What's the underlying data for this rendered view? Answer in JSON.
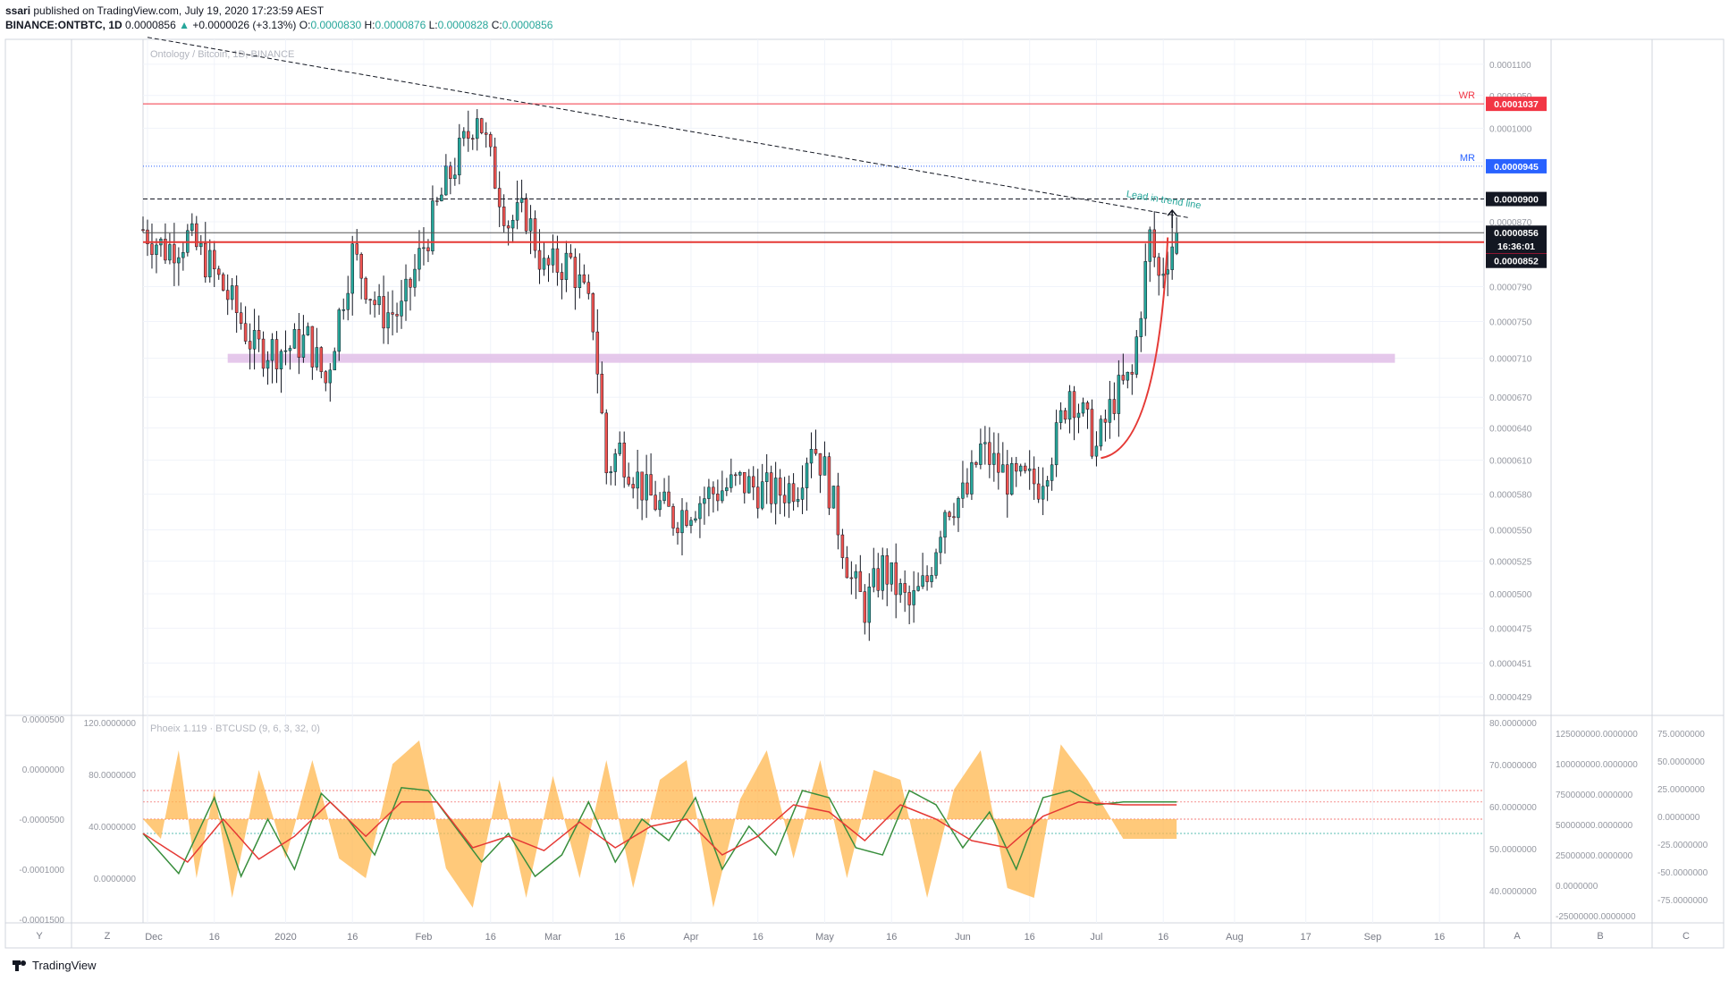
{
  "header": {
    "author": "ssari",
    "published_line": "published on TradingView.com, July 19, 2020 17:23:59 AEST",
    "symbol": "BINANCE:ONTBTC, 1D",
    "price": "0.0000856",
    "arrow": "▲",
    "change": "+0.0000026 (+3.13%)",
    "o_label": "O:",
    "o_value": "0.0000830",
    "h_label": "H:",
    "h_value": "0.0000876",
    "l_label": "L:",
    "l_value": "0.0000828",
    "c_label": "C:",
    "c_value": "0.0000856"
  },
  "footer": {
    "brand": "TradingView",
    "logo_icon": "tradingview-logo-icon"
  },
  "colors": {
    "up": "#26a69a",
    "down": "#ef5350",
    "wr_line": "#f23645",
    "mr_line": "#2962ff",
    "support_band": "#e1bee7",
    "curve": "#e53935",
    "fill": "#ffb74d",
    "fast_line": "#388e3c",
    "slow_line": "#e53935"
  },
  "chart_data": {
    "type": "candlestick",
    "title": "Ontology / Bitcoin, 1D, BINANCE",
    "y_scale": "log",
    "ylim": [
      4.2e-05,
      0.000114
    ],
    "price_ticks": [
      "0.0001100",
      "0.0001050",
      "0.0001000",
      "0.0000950",
      "0.0000900",
      "0.0000870",
      "0.0000790",
      "0.0000750",
      "0.0000710",
      "0.0000670",
      "0.0000640",
      "0.0000610",
      "0.0000580",
      "0.0000550",
      "0.0000525",
      "0.0000500",
      "0.0000475",
      "0.0000451",
      "0.0000429"
    ],
    "x_ticks": [
      "Dec",
      "16",
      "2020",
      "16",
      "Feb",
      "16",
      "Mar",
      "16",
      "Apr",
      "16",
      "May",
      "16",
      "Jun",
      "16",
      "Jul",
      "16",
      "Aug",
      "17",
      "Sep",
      "16"
    ],
    "x_tick_dates": [
      "2019-12-01",
      "2019-12-16",
      "2020-01-01",
      "2020-01-16",
      "2020-02-01",
      "2020-02-16",
      "2020-03-01",
      "2020-03-16",
      "2020-04-01",
      "2020-04-16",
      "2020-05-01",
      "2020-05-16",
      "2020-06-01",
      "2020-06-16",
      "2020-07-01",
      "2020-07-16",
      "2020-08-01",
      "2020-08-17",
      "2020-09-01",
      "2020-09-16"
    ],
    "date_range": [
      "2019-11-30",
      "2020-07-19"
    ],
    "anchors": [
      [
        "2019-11-30",
        8.6e-05
      ],
      [
        "2019-12-05",
        8.35e-05
      ],
      [
        "2019-12-10",
        8.5e-05
      ],
      [
        "2019-12-15",
        8.15e-05
      ],
      [
        "2019-12-20",
        7.7e-05
      ],
      [
        "2019-12-25",
        7.2e-05
      ],
      [
        "2020-01-01",
        7.2e-05
      ],
      [
        "2020-01-06",
        7.3e-05
      ],
      [
        "2020-01-10",
        6.85e-05
      ],
      [
        "2020-01-16",
        8.3e-05
      ],
      [
        "2020-01-22",
        7.6e-05
      ],
      [
        "2020-01-27",
        7.6e-05
      ],
      [
        "2020-02-01",
        8.4e-05
      ],
      [
        "2020-02-06",
        9.2e-05
      ],
      [
        "2020-02-11",
        9.9e-05
      ],
      [
        "2020-02-13",
        0.000103
      ],
      [
        "2020-02-16",
        9.5e-05
      ],
      [
        "2020-02-20",
        8.7e-05
      ],
      [
        "2020-02-24",
        8.8e-05
      ],
      [
        "2020-02-28",
        8.1e-05
      ],
      [
        "2020-03-05",
        8.2e-05
      ],
      [
        "2020-03-10",
        7.5e-05
      ],
      [
        "2020-03-13",
        6e-05
      ],
      [
        "2020-03-16",
        6.2e-05
      ],
      [
        "2020-03-22",
        5.8e-05
      ],
      [
        "2020-03-28",
        5.6e-05
      ],
      [
        "2020-04-05",
        5.8e-05
      ],
      [
        "2020-04-12",
        5.9e-05
      ],
      [
        "2020-04-20",
        5.8e-05
      ],
      [
        "2020-04-25",
        5.9e-05
      ],
      [
        "2020-04-28",
        6.3e-05
      ],
      [
        "2020-05-01",
        6e-05
      ],
      [
        "2020-05-07",
        5.1e-05
      ],
      [
        "2020-05-10",
        4.9e-05
      ],
      [
        "2020-05-14",
        5.2e-05
      ],
      [
        "2020-05-20",
        4.9e-05
      ],
      [
        "2020-05-24",
        5.1e-05
      ],
      [
        "2020-05-28",
        5.7e-05
      ],
      [
        "2020-06-02",
        5.8e-05
      ],
      [
        "2020-06-05",
        6.2e-05
      ],
      [
        "2020-06-12",
        5.9e-05
      ],
      [
        "2020-06-18",
        5.9e-05
      ],
      [
        "2020-06-22",
        6.3e-05
      ],
      [
        "2020-06-25",
        6.8e-05
      ],
      [
        "2020-06-28",
        6.5e-05
      ],
      [
        "2020-07-01",
        6.2e-05
      ],
      [
        "2020-07-05",
        6.7e-05
      ],
      [
        "2020-07-09",
        6.9e-05
      ],
      [
        "2020-07-11",
        7.7e-05
      ],
      [
        "2020-07-13",
        8.5e-05
      ],
      [
        "2020-07-15",
        8e-05
      ],
      [
        "2020-07-17",
        8.3e-05
      ],
      [
        "2020-07-19",
        8.56e-05
      ]
    ],
    "levels": [
      {
        "name": "WR",
        "label": "WR",
        "value": 0.0001037,
        "tag": "0.0001037",
        "style": "solid",
        "color": "#f23645"
      },
      {
        "name": "MR",
        "label": "MR",
        "value": 9.45e-05,
        "tag": "0.0000945",
        "style": "dotted",
        "color": "#2962ff"
      },
      {
        "name": "resistance-900",
        "label": "",
        "value": 9e-05,
        "tag": "0.0000900",
        "style": "dashed",
        "color": "#131722"
      },
      {
        "name": "last-price",
        "label": "",
        "value": 8.56e-05,
        "tag": "0.0000856",
        "style": "solid",
        "color": "#555555"
      },
      {
        "name": "red-level",
        "label": "",
        "value": 8.44e-05,
        "tag": "0.0000844",
        "style": "solid-thick",
        "color": "#e53935"
      }
    ],
    "extra_tags": [
      {
        "name": "countdown",
        "text": "16:36:01",
        "value": 8.56e-05,
        "offset": 15
      },
      {
        "name": "price-852",
        "text": "0.0000852",
        "value": 8.52e-05,
        "offset": 28
      }
    ],
    "support_zone": {
      "value": 7.1e-05,
      "from": "2019-12-19",
      "to": "2020-09-06"
    },
    "trend_line": {
      "from": [
        "2019-12-01",
        0.0001145
      ],
      "to": [
        "2020-07-22",
        8.75e-05
      ]
    },
    "annotation": "Lead in trend line",
    "indicator": {
      "title": "Phoeix 1.119 · BTCUSD (9, 6, 3, 32, 0)",
      "left_ticks": [
        "120.0000000",
        "80.0000000",
        "40.0000000",
        "0.0000000"
      ],
      "left_ticks2": [
        "0.0000500",
        "0.0000000",
        "-0.0000500",
        "-0.0001000",
        "-0.0001500"
      ],
      "right_ticks1": [
        "80.0000000",
        "70.0000000",
        "60.0000000",
        "50.0000000",
        "40.0000000"
      ],
      "right_ticks2": [
        "125000000.0000000",
        "100000000.0000000",
        "75000000.0000000",
        "50000000.0000000",
        "25000000.0000000",
        "0.0000000",
        "-25000000.0000000"
      ],
      "right_ticks3": [
        "75.0000000",
        "50.0000000",
        "25.0000000",
        "0.0000000",
        "-25.0000000",
        "-50.0000000",
        "-75.0000000"
      ],
      "fast_anchors": [
        [
          0,
          50
        ],
        [
          8,
          22
        ],
        [
          16,
          75
        ],
        [
          22,
          20
        ],
        [
          28,
          60
        ],
        [
          34,
          25
        ],
        [
          40,
          78
        ],
        [
          46,
          60
        ],
        [
          52,
          35
        ],
        [
          58,
          82
        ],
        [
          64,
          80
        ],
        [
          70,
          55
        ],
        [
          76,
          30
        ],
        [
          82,
          50
        ],
        [
          88,
          20
        ],
        [
          94,
          35
        ],
        [
          100,
          72
        ],
        [
          106,
          30
        ],
        [
          112,
          60
        ],
        [
          118,
          45
        ],
        [
          124,
          75
        ],
        [
          130,
          25
        ],
        [
          136,
          55
        ],
        [
          142,
          35
        ],
        [
          148,
          80
        ],
        [
          154,
          75
        ],
        [
          160,
          40
        ],
        [
          166,
          35
        ],
        [
          172,
          80
        ],
        [
          178,
          70
        ],
        [
          184,
          40
        ],
        [
          190,
          65
        ],
        [
          196,
          25
        ],
        [
          202,
          75
        ],
        [
          208,
          80
        ],
        [
          214,
          70
        ],
        [
          220,
          72
        ]
      ],
      "slow_anchors": [
        [
          0,
          50
        ],
        [
          10,
          30
        ],
        [
          18,
          60
        ],
        [
          26,
          32
        ],
        [
          34,
          48
        ],
        [
          42,
          72
        ],
        [
          50,
          48
        ],
        [
          58,
          72
        ],
        [
          66,
          72
        ],
        [
          74,
          40
        ],
        [
          82,
          48
        ],
        [
          90,
          38
        ],
        [
          98,
          58
        ],
        [
          106,
          40
        ],
        [
          114,
          55
        ],
        [
          122,
          60
        ],
        [
          130,
          35
        ],
        [
          138,
          48
        ],
        [
          146,
          70
        ],
        [
          154,
          65
        ],
        [
          162,
          45
        ],
        [
          170,
          70
        ],
        [
          178,
          60
        ],
        [
          186,
          45
        ],
        [
          194,
          40
        ],
        [
          202,
          62
        ],
        [
          210,
          72
        ],
        [
          220,
          70
        ]
      ],
      "fill_anchors": [
        [
          0,
          0
        ],
        [
          4,
          -10
        ],
        [
          8,
          35
        ],
        [
          12,
          -30
        ],
        [
          16,
          15
        ],
        [
          20,
          -40
        ],
        [
          26,
          25
        ],
        [
          32,
          -20
        ],
        [
          38,
          30
        ],
        [
          44,
          -20
        ],
        [
          50,
          -30
        ],
        [
          56,
          28
        ],
        [
          62,
          40
        ],
        [
          68,
          -25
        ],
        [
          74,
          -45
        ],
        [
          80,
          20
        ],
        [
          86,
          -40
        ],
        [
          92,
          22
        ],
        [
          98,
          -30
        ],
        [
          104,
          30
        ],
        [
          110,
          -35
        ],
        [
          116,
          20
        ],
        [
          122,
          30
        ],
        [
          128,
          -45
        ],
        [
          134,
          10
        ],
        [
          140,
          35
        ],
        [
          146,
          -20
        ],
        [
          152,
          30
        ],
        [
          158,
          -30
        ],
        [
          164,
          25
        ],
        [
          170,
          20
        ],
        [
          176,
          -40
        ],
        [
          182,
          15
        ],
        [
          188,
          35
        ],
        [
          194,
          -35
        ],
        [
          200,
          -40
        ],
        [
          206,
          38
        ],
        [
          212,
          20
        ],
        [
          220,
          -10
        ]
      ],
      "signal_levels": [
        80,
        72,
        60,
        50
      ]
    }
  },
  "bottom_buttons": [
    "Y",
    "Z",
    "A",
    "B",
    "C"
  ]
}
